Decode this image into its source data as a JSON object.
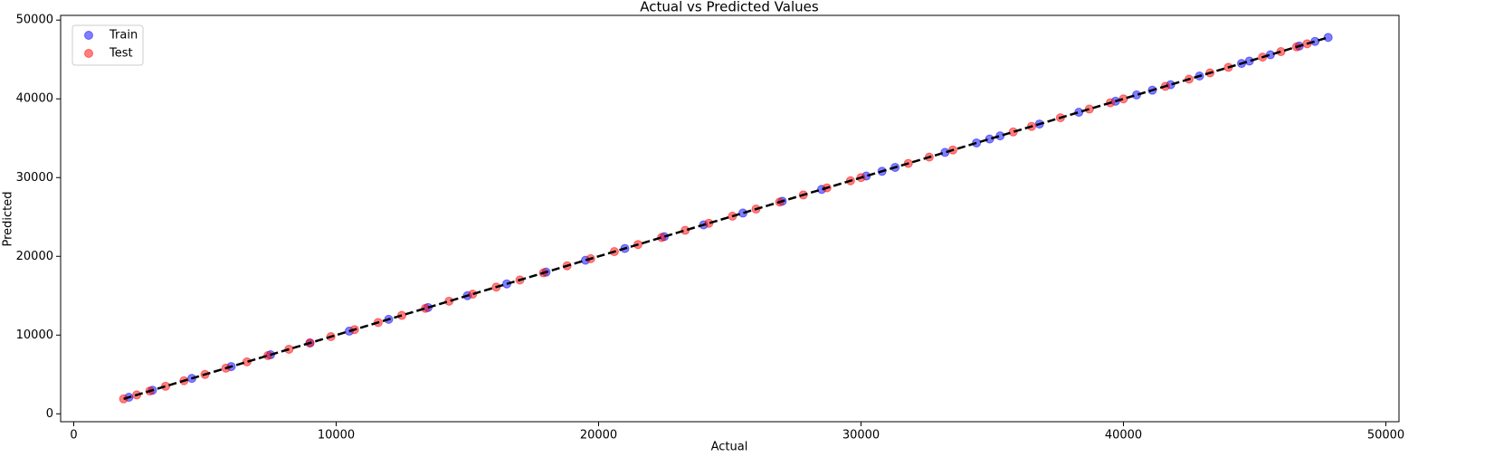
{
  "chart_data": {
    "type": "scatter",
    "title": "Actual vs Predicted Values",
    "x_label": "Actual",
    "y_label": "Predicted",
    "xlim": [
      -500,
      50500
    ],
    "ylim": [
      -1000,
      50600
    ],
    "xticks": [
      0,
      10000,
      20000,
      30000,
      40000,
      50000
    ],
    "yticks": [
      0,
      10000,
      20000,
      30000,
      40000,
      50000
    ],
    "legend": "upper left",
    "series": [
      {
        "name": "Train",
        "color": "#0000ff",
        "x": [
          2100,
          3000,
          4500,
          6000,
          7500,
          9000,
          10500,
          12000,
          13500,
          15000,
          16500,
          18000,
          19500,
          21000,
          22500,
          24000,
          25500,
          27000,
          28500,
          30200,
          30800,
          31300,
          33200,
          34400,
          34900,
          35300,
          36800,
          38300,
          39700,
          40500,
          41100,
          41800,
          42900,
          44500,
          44800,
          45600,
          46700,
          47300,
          47800
        ],
        "values": [
          2100,
          3000,
          4500,
          6000,
          7500,
          9000,
          10500,
          12000,
          13500,
          15000,
          16500,
          18000,
          19500,
          21000,
          22500,
          24000,
          25500,
          27000,
          28500,
          30200,
          30800,
          31300,
          33200,
          34400,
          34900,
          35300,
          36800,
          38300,
          39700,
          40500,
          41100,
          41800,
          42900,
          44500,
          44800,
          45600,
          46700,
          47300,
          47800
        ]
      },
      {
        "name": "Test",
        "color": "#ff0000",
        "x": [
          1900,
          2400,
          2900,
          3500,
          4200,
          5000,
          5800,
          6600,
          7400,
          8200,
          9000,
          9800,
          10700,
          11600,
          12500,
          13400,
          14300,
          15200,
          16100,
          17000,
          17900,
          18800,
          19700,
          20600,
          21500,
          22400,
          23300,
          24200,
          25100,
          26000,
          26900,
          27800,
          28700,
          29600,
          30000,
          31800,
          32600,
          33500,
          35800,
          36500,
          37600,
          38700,
          39500,
          40000,
          41600,
          42500,
          43300,
          44000,
          45300,
          46000,
          46600,
          47000
        ],
        "values": [
          1900,
          2400,
          2900,
          3500,
          4200,
          5000,
          5800,
          6600,
          7400,
          8200,
          9000,
          9800,
          10700,
          11600,
          12500,
          13400,
          14300,
          15200,
          16100,
          17000,
          17900,
          18800,
          19700,
          20600,
          21500,
          22400,
          23300,
          24200,
          25100,
          26000,
          26900,
          27800,
          28700,
          29600,
          30000,
          31800,
          32600,
          33500,
          35800,
          36500,
          37600,
          38700,
          39500,
          40000,
          41600,
          42500,
          43300,
          44000,
          45300,
          46000,
          46600,
          47000
        ]
      }
    ],
    "reference_line": {
      "color": "#000000",
      "style": "dashed",
      "x": [
        1900,
        47800
      ],
      "values": [
        1900,
        47800
      ]
    }
  }
}
